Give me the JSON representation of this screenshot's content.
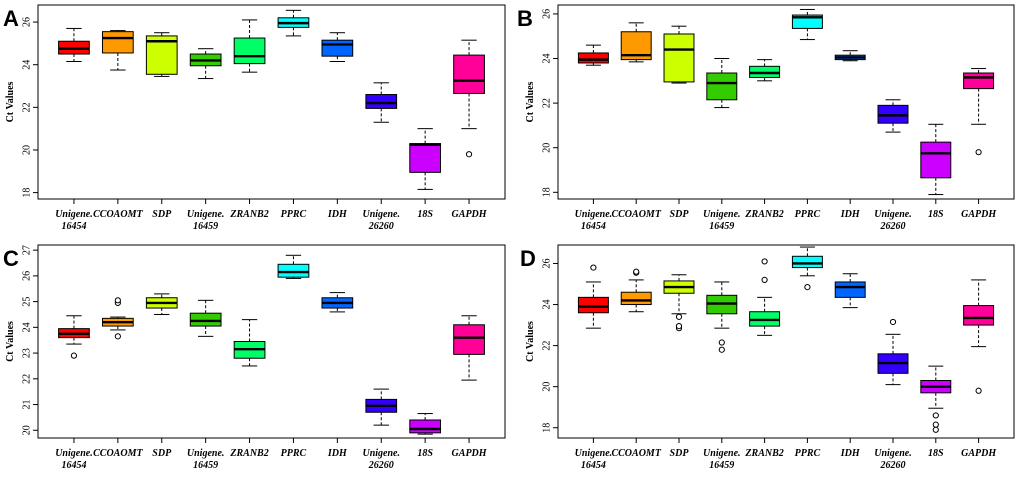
{
  "figure": {
    "categories": [
      "Unigene.\n16454",
      "CCOAOMT",
      "SDP",
      "Unigene.\n16459",
      "ZRANB2",
      "PPRC",
      "IDH",
      "Unigene.\n26260",
      "18S",
      "GAPDH"
    ],
    "colors": [
      "#ff0000",
      "#ff9900",
      "#ccff00",
      "#33cc00",
      "#00ff66",
      "#00ffff",
      "#0066ff",
      "#3300ff",
      "#cc00ff",
      "#ff0099"
    ]
  },
  "chart_data": [
    {
      "type": "box",
      "panel": "A",
      "ylabel": "Ct Values",
      "yticks": [
        18,
        20,
        22,
        24,
        26
      ],
      "ylim": [
        17.7,
        26.8
      ],
      "series": [
        {
          "name": "Unigene.16454",
          "whisker_low": 24.15,
          "q1": 24.5,
          "median": 24.75,
          "q3": 25.1,
          "whisker_high": 25.7,
          "outliers": []
        },
        {
          "name": "CCOAOMT",
          "whisker_low": 23.75,
          "q1": 24.55,
          "median": 25.25,
          "q3": 25.55,
          "whisker_high": 25.6,
          "outliers": []
        },
        {
          "name": "SDP",
          "whisker_low": 23.45,
          "q1": 23.55,
          "median": 25.1,
          "q3": 25.35,
          "whisker_high": 25.5,
          "outliers": []
        },
        {
          "name": "Unigene.16459",
          "whisker_low": 23.35,
          "q1": 23.95,
          "median": 24.2,
          "q3": 24.5,
          "whisker_high": 24.75,
          "outliers": []
        },
        {
          "name": "ZRANB2",
          "whisker_low": 23.65,
          "q1": 24.05,
          "median": 24.4,
          "q3": 25.25,
          "whisker_high": 26.1,
          "outliers": []
        },
        {
          "name": "PPRC",
          "whisker_low": 25.35,
          "q1": 25.75,
          "median": 25.95,
          "q3": 26.2,
          "whisker_high": 26.55,
          "outliers": []
        },
        {
          "name": "IDH",
          "whisker_low": 24.15,
          "q1": 24.4,
          "median": 24.95,
          "q3": 25.15,
          "whisker_high": 25.5,
          "outliers": []
        },
        {
          "name": "Unigene.26260",
          "whisker_low": 21.3,
          "q1": 21.95,
          "median": 22.2,
          "q3": 22.6,
          "whisker_high": 23.15,
          "outliers": []
        },
        {
          "name": "18S",
          "whisker_low": 18.15,
          "q1": 18.95,
          "median": 20.25,
          "q3": 20.3,
          "whisker_high": 21.0,
          "outliers": []
        },
        {
          "name": "GAPDH",
          "whisker_low": 21.0,
          "q1": 22.65,
          "median": 23.25,
          "q3": 24.45,
          "whisker_high": 25.15,
          "outliers": [
            19.8
          ]
        }
      ]
    },
    {
      "type": "box",
      "panel": "B",
      "ylabel": "Ct Values",
      "yticks": [
        18,
        20,
        22,
        24,
        26
      ],
      "ylim": [
        17.7,
        26.4
      ],
      "series": [
        {
          "name": "Unigene.16454",
          "whisker_low": 23.7,
          "q1": 23.8,
          "median": 23.95,
          "q3": 24.25,
          "whisker_high": 24.6,
          "outliers": []
        },
        {
          "name": "CCOAOMT",
          "whisker_low": 23.85,
          "q1": 23.95,
          "median": 24.15,
          "q3": 25.2,
          "whisker_high": 25.6,
          "outliers": []
        },
        {
          "name": "SDP",
          "whisker_low": 22.9,
          "q1": 22.95,
          "median": 24.4,
          "q3": 25.1,
          "whisker_high": 25.45,
          "outliers": []
        },
        {
          "name": "Unigene.16459",
          "whisker_low": 21.8,
          "q1": 22.15,
          "median": 22.9,
          "q3": 23.35,
          "whisker_high": 24.0,
          "outliers": []
        },
        {
          "name": "ZRANB2",
          "whisker_low": 23.0,
          "q1": 23.15,
          "median": 23.35,
          "q3": 23.65,
          "whisker_high": 23.95,
          "outliers": []
        },
        {
          "name": "PPRC",
          "whisker_low": 24.85,
          "q1": 25.35,
          "median": 25.85,
          "q3": 25.95,
          "whisker_high": 26.2,
          "outliers": []
        },
        {
          "name": "IDH",
          "whisker_low": 23.9,
          "q1": 23.95,
          "median": 24.05,
          "q3": 24.15,
          "whisker_high": 24.35,
          "outliers": []
        },
        {
          "name": "Unigene.26260",
          "whisker_low": 20.7,
          "q1": 21.1,
          "median": 21.45,
          "q3": 21.9,
          "whisker_high": 22.15,
          "outliers": []
        },
        {
          "name": "18S",
          "whisker_low": 17.9,
          "q1": 18.65,
          "median": 19.75,
          "q3": 20.25,
          "whisker_high": 21.05,
          "outliers": []
        },
        {
          "name": "GAPDH",
          "whisker_low": 21.05,
          "q1": 22.65,
          "median": 23.15,
          "q3": 23.35,
          "whisker_high": 23.55,
          "outliers": [
            19.8
          ]
        }
      ]
    },
    {
      "type": "box",
      "panel": "C",
      "ylabel": "Ct Values",
      "yticks": [
        20,
        21,
        22,
        23,
        24,
        25,
        26,
        27
      ],
      "ylim": [
        19.7,
        27.2
      ],
      "series": [
        {
          "name": "Unigene.16454",
          "whisker_low": 23.35,
          "q1": 23.6,
          "median": 23.75,
          "q3": 23.95,
          "whisker_high": 24.45,
          "outliers": [
            22.9
          ]
        },
        {
          "name": "CCOAOMT",
          "whisker_low": 23.9,
          "q1": 24.05,
          "median": 24.2,
          "q3": 24.35,
          "whisker_high": 24.4,
          "outliers": [
            23.65,
            24.95,
            25.05
          ]
        },
        {
          "name": "SDP",
          "whisker_low": 24.5,
          "q1": 24.75,
          "median": 24.95,
          "q3": 25.15,
          "whisker_high": 25.3,
          "outliers": []
        },
        {
          "name": "Unigene.16459",
          "whisker_low": 23.65,
          "q1": 24.05,
          "median": 24.25,
          "q3": 24.55,
          "whisker_high": 25.05,
          "outliers": []
        },
        {
          "name": "ZRANB2",
          "whisker_low": 22.5,
          "q1": 22.8,
          "median": 23.15,
          "q3": 23.45,
          "whisker_high": 24.3,
          "outliers": []
        },
        {
          "name": "PPRC",
          "whisker_low": 25.9,
          "q1": 25.95,
          "median": 26.15,
          "q3": 26.45,
          "whisker_high": 26.8,
          "outliers": []
        },
        {
          "name": "IDH",
          "whisker_low": 24.6,
          "q1": 24.75,
          "median": 24.95,
          "q3": 25.15,
          "whisker_high": 25.35,
          "outliers": []
        },
        {
          "name": "Unigene.26260",
          "whisker_low": 20.2,
          "q1": 20.7,
          "median": 20.95,
          "q3": 21.2,
          "whisker_high": 21.6,
          "outliers": []
        },
        {
          "name": "18S",
          "whisker_low": 19.85,
          "q1": 19.9,
          "median": 20.05,
          "q3": 20.4,
          "whisker_high": 20.65,
          "outliers": []
        },
        {
          "name": "GAPDH",
          "whisker_low": 21.95,
          "q1": 22.95,
          "median": 23.6,
          "q3": 24.1,
          "whisker_high": 24.45,
          "outliers": []
        }
      ]
    },
    {
      "type": "box",
      "panel": "D",
      "ylabel": "Ct Values",
      "yticks": [
        18,
        20,
        22,
        24,
        26
      ],
      "ylim": [
        17.5,
        26.9
      ],
      "series": [
        {
          "name": "Unigene.16454",
          "whisker_low": 22.85,
          "q1": 23.6,
          "median": 23.9,
          "q3": 24.35,
          "whisker_high": 25.1,
          "outliers": [
            25.8
          ]
        },
        {
          "name": "CCOAOMT",
          "whisker_low": 23.65,
          "q1": 24.0,
          "median": 24.2,
          "q3": 24.6,
          "whisker_high": 25.2,
          "outliers": [
            25.55,
            25.6
          ]
        },
        {
          "name": "SDP",
          "whisker_low": 23.55,
          "q1": 24.55,
          "median": 24.85,
          "q3": 25.15,
          "whisker_high": 25.45,
          "outliers": [
            22.85,
            22.95,
            23.4
          ]
        },
        {
          "name": "Unigene.16459",
          "whisker_low": 22.85,
          "q1": 23.55,
          "median": 24.05,
          "q3": 24.45,
          "whisker_high": 25.1,
          "outliers": [
            21.8,
            22.15
          ]
        },
        {
          "name": "ZRANB2",
          "whisker_low": 22.5,
          "q1": 22.95,
          "median": 23.25,
          "q3": 23.65,
          "whisker_high": 24.35,
          "outliers": [
            25.2,
            26.1
          ]
        },
        {
          "name": "PPRC",
          "whisker_low": 25.4,
          "q1": 25.8,
          "median": 26.0,
          "q3": 26.35,
          "whisker_high": 26.8,
          "outliers": [
            24.85
          ]
        },
        {
          "name": "IDH",
          "whisker_low": 23.85,
          "q1": 24.35,
          "median": 24.85,
          "q3": 25.1,
          "whisker_high": 25.5,
          "outliers": []
        },
        {
          "name": "Unigene.26260",
          "whisker_low": 20.1,
          "q1": 20.65,
          "median": 21.15,
          "q3": 21.6,
          "whisker_high": 22.55,
          "outliers": [
            23.15
          ]
        },
        {
          "name": "18S",
          "whisker_low": 18.95,
          "q1": 19.7,
          "median": 20.0,
          "q3": 20.3,
          "whisker_high": 21.0,
          "outliers": [
            17.9,
            18.15,
            18.6
          ]
        },
        {
          "name": "GAPDH",
          "whisker_low": 21.95,
          "q1": 23.0,
          "median": 23.35,
          "q3": 23.95,
          "whisker_high": 25.2,
          "outliers": [
            19.8
          ]
        }
      ]
    }
  ]
}
